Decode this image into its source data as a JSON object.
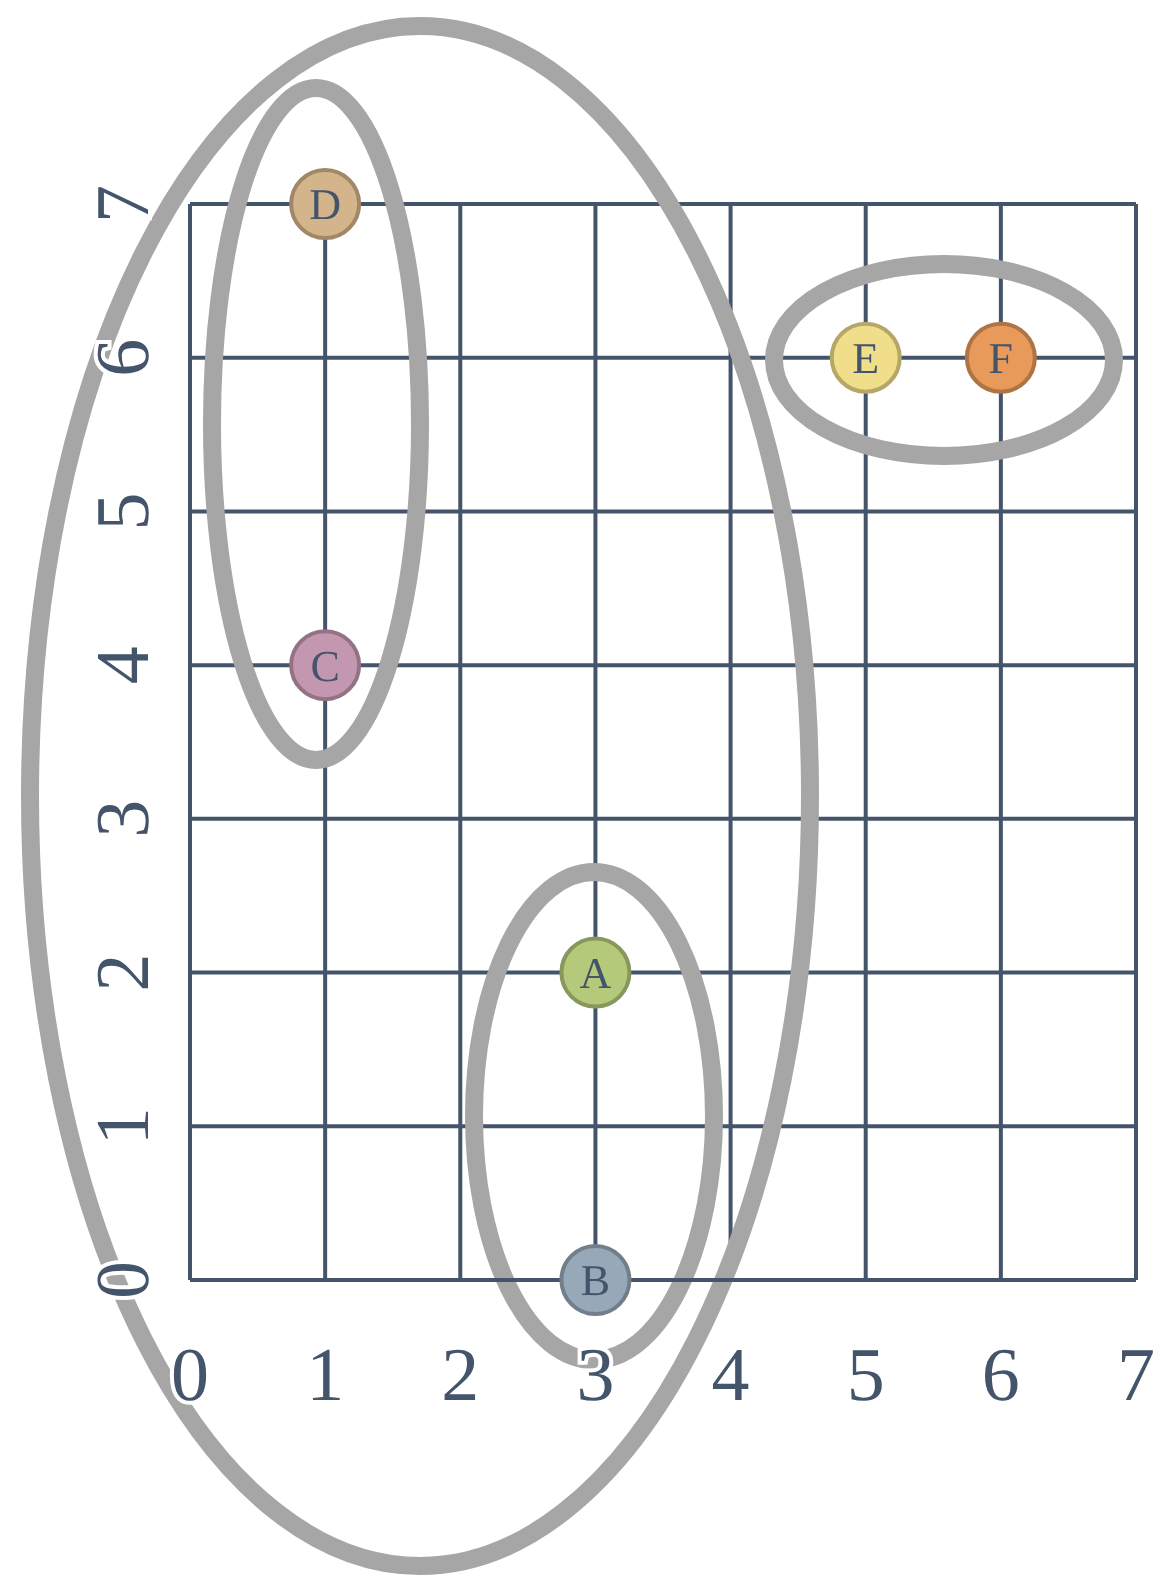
{
  "chart_data": {
    "type": "scatter",
    "xlim": [
      0,
      7
    ],
    "ylim": [
      0,
      7
    ],
    "xticks": [
      0,
      1,
      2,
      3,
      4,
      5,
      6,
      7
    ],
    "yticks": [
      0,
      1,
      2,
      3,
      4,
      5,
      6,
      7
    ],
    "grid": true,
    "marker": "circle",
    "series": [
      {
        "name": "A",
        "color": "#b5c97a",
        "x": [
          3
        ],
        "values": [
          2
        ]
      },
      {
        "name": "B",
        "color": "#97a9b8",
        "x": [
          3
        ],
        "values": [
          0
        ]
      },
      {
        "name": "C",
        "color": "#c497b0",
        "x": [
          1
        ],
        "values": [
          4
        ]
      },
      {
        "name": "D",
        "color": "#d4b48a",
        "x": [
          1
        ],
        "values": [
          7
        ]
      },
      {
        "name": "E",
        "color": "#f0de8a",
        "x": [
          5
        ],
        "values": [
          6
        ]
      },
      {
        "name": "F",
        "color": "#e89a5a",
        "x": [
          6
        ],
        "values": [
          6
        ]
      }
    ]
  }
}
